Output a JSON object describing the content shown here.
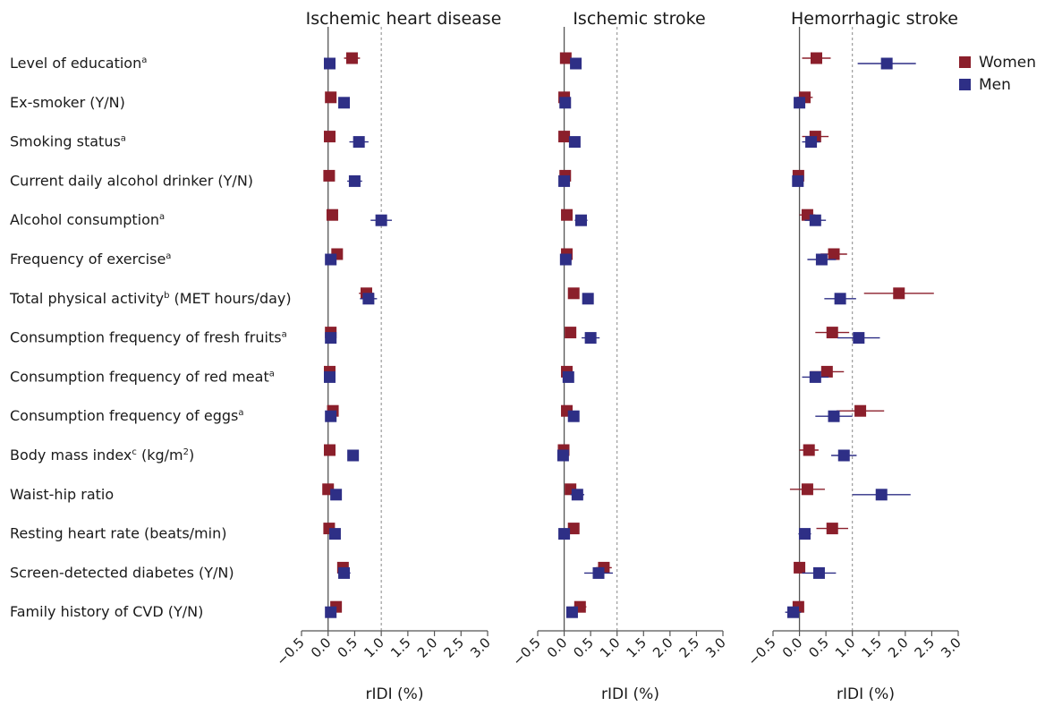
{
  "chart_data": {
    "type": "forest",
    "rows": [
      {
        "label": "Level of education",
        "sup": "a"
      },
      {
        "label": "Ex-smoker (Y/N)",
        "sup": ""
      },
      {
        "label": "Smoking status",
        "sup": "a"
      },
      {
        "label": "Current daily alcohol drinker (Y/N)",
        "sup": ""
      },
      {
        "label": "Alcohol consumption",
        "sup": "a"
      },
      {
        "label": "Frequency of exercise",
        "sup": "a"
      },
      {
        "label": "Total physical activity",
        "sup": "b",
        "suffix": " (MET hours/day)"
      },
      {
        "label": "Consumption frequency of fresh fruits",
        "sup": "a"
      },
      {
        "label": "Consumption frequency of red meat",
        "sup": "a"
      },
      {
        "label": "Consumption frequency of eggs",
        "sup": "a"
      },
      {
        "label": "Body mass index",
        "sup": "c",
        "suffix": " (kg/m",
        "sup2": "2",
        "suffix2": ")"
      },
      {
        "label": "Waist-hip ratio",
        "sup": ""
      },
      {
        "label": "Resting heart rate (beats/min)",
        "sup": ""
      },
      {
        "label": "Screen-detected diabetes (Y/N)",
        "sup": ""
      },
      {
        "label": "Family history of CVD (Y/N)",
        "sup": ""
      }
    ],
    "xlabel": "rIDI (%)",
    "xlim": [
      -0.5,
      3.0
    ],
    "xticks": [
      "−0.5",
      "0.0",
      "0.5",
      "1.0",
      "1.5",
      "2.0",
      "2.5",
      "3.0"
    ],
    "xtick_values": [
      -0.5,
      0.0,
      0.5,
      1.0,
      1.5,
      2.0,
      2.5,
      3.0
    ],
    "reference_line": 1.0,
    "legend": {
      "position": "top-right",
      "entries": [
        "Women",
        "Men"
      ]
    },
    "colors": {
      "Women": "#8b1f2b",
      "Men": "#2e2f86"
    },
    "panels": [
      {
        "title": "Ischemic heart disease",
        "women": [
          [
            0.45,
            0.3,
            0.6
          ],
          [
            0.05,
            -0.02,
            0.12
          ],
          [
            0.03,
            -0.04,
            0.1
          ],
          [
            0.02,
            -0.04,
            0.08
          ],
          [
            0.08,
            0.0,
            0.16
          ],
          [
            0.17,
            0.08,
            0.26
          ],
          [
            0.72,
            0.58,
            0.86
          ],
          [
            0.05,
            -0.02,
            0.12
          ],
          [
            0.03,
            -0.04,
            0.1
          ],
          [
            0.09,
            0.0,
            0.18
          ],
          [
            0.03,
            -0.04,
            0.1
          ],
          [
            0.0,
            -0.06,
            0.06
          ],
          [
            0.02,
            -0.04,
            0.08
          ],
          [
            0.28,
            0.18,
            0.38
          ],
          [
            0.15,
            0.06,
            0.24
          ]
        ],
        "men": [
          [
            0.03,
            -0.04,
            0.1
          ],
          [
            0.3,
            0.2,
            0.4
          ],
          [
            0.58,
            0.4,
            0.76
          ],
          [
            0.5,
            0.36,
            0.64
          ],
          [
            1.0,
            0.8,
            1.2
          ],
          [
            0.05,
            -0.02,
            0.12
          ],
          [
            0.76,
            0.6,
            0.92
          ],
          [
            0.05,
            -0.02,
            0.12
          ],
          [
            0.03,
            -0.04,
            0.1
          ],
          [
            0.05,
            -0.02,
            0.12
          ],
          [
            0.47,
            0.37,
            0.57
          ],
          [
            0.15,
            0.06,
            0.24
          ],
          [
            0.13,
            0.04,
            0.22
          ],
          [
            0.3,
            0.18,
            0.42
          ],
          [
            0.05,
            -0.02,
            0.12
          ]
        ]
      },
      {
        "title": "Ischemic stroke",
        "women": [
          [
            0.03,
            -0.04,
            0.1
          ],
          [
            0.0,
            -0.06,
            0.06
          ],
          [
            0.0,
            -0.06,
            0.06
          ],
          [
            0.02,
            -0.04,
            0.08
          ],
          [
            0.05,
            -0.02,
            0.12
          ],
          [
            0.05,
            -0.02,
            0.12
          ],
          [
            0.18,
            0.08,
            0.28
          ],
          [
            0.12,
            0.04,
            0.2
          ],
          [
            0.05,
            -0.02,
            0.12
          ],
          [
            0.05,
            -0.02,
            0.12
          ],
          [
            -0.01,
            -0.07,
            0.05
          ],
          [
            0.12,
            0.04,
            0.2
          ],
          [
            0.18,
            0.08,
            0.28
          ],
          [
            0.75,
            0.6,
            0.9
          ],
          [
            0.3,
            0.18,
            0.42
          ]
        ],
        "men": [
          [
            0.22,
            0.12,
            0.32
          ],
          [
            0.02,
            -0.04,
            0.08
          ],
          [
            0.2,
            0.1,
            0.3
          ],
          [
            0.0,
            -0.06,
            0.06
          ],
          [
            0.32,
            0.2,
            0.44
          ],
          [
            0.03,
            -0.04,
            0.1
          ],
          [
            0.45,
            0.35,
            0.55
          ],
          [
            0.5,
            0.33,
            0.67
          ],
          [
            0.08,
            0.0,
            0.16
          ],
          [
            0.18,
            0.08,
            0.28
          ],
          [
            -0.02,
            -0.08,
            0.04
          ],
          [
            0.25,
            0.12,
            0.38
          ],
          [
            0.0,
            -0.06,
            0.06
          ],
          [
            0.65,
            0.38,
            0.92
          ],
          [
            0.15,
            0.05,
            0.25
          ]
        ]
      },
      {
        "title": "Hemorrhagic stroke",
        "women": [
          [
            0.32,
            0.05,
            0.59
          ],
          [
            0.1,
            -0.05,
            0.25
          ],
          [
            0.3,
            0.05,
            0.55
          ],
          [
            -0.02,
            -0.12,
            0.08
          ],
          [
            0.15,
            0.0,
            0.3
          ],
          [
            0.65,
            0.4,
            0.9
          ],
          [
            1.88,
            1.22,
            2.54
          ],
          [
            0.62,
            0.3,
            0.94
          ],
          [
            0.52,
            0.2,
            0.84
          ],
          [
            1.15,
            0.7,
            1.6
          ],
          [
            0.18,
            0.0,
            0.36
          ],
          [
            0.15,
            -0.18,
            0.48
          ],
          [
            0.62,
            0.32,
            0.92
          ],
          [
            0.0,
            -0.1,
            0.1
          ],
          [
            -0.02,
            -0.12,
            0.08
          ]
        ],
        "men": [
          [
            1.65,
            1.1,
            2.2
          ],
          [
            0.0,
            -0.08,
            0.08
          ],
          [
            0.22,
            0.05,
            0.39
          ],
          [
            -0.03,
            -0.13,
            0.07
          ],
          [
            0.3,
            0.1,
            0.5
          ],
          [
            0.42,
            0.15,
            0.69
          ],
          [
            0.77,
            0.47,
            1.07
          ],
          [
            1.12,
            0.72,
            1.52
          ],
          [
            0.3,
            0.05,
            0.55
          ],
          [
            0.65,
            0.3,
            1.0
          ],
          [
            0.84,
            0.6,
            1.08
          ],
          [
            1.55,
            1.0,
            2.1
          ],
          [
            0.1,
            -0.02,
            0.22
          ],
          [
            0.37,
            0.05,
            0.69
          ],
          [
            -0.12,
            -0.27,
            0.03
          ]
        ]
      }
    ]
  }
}
